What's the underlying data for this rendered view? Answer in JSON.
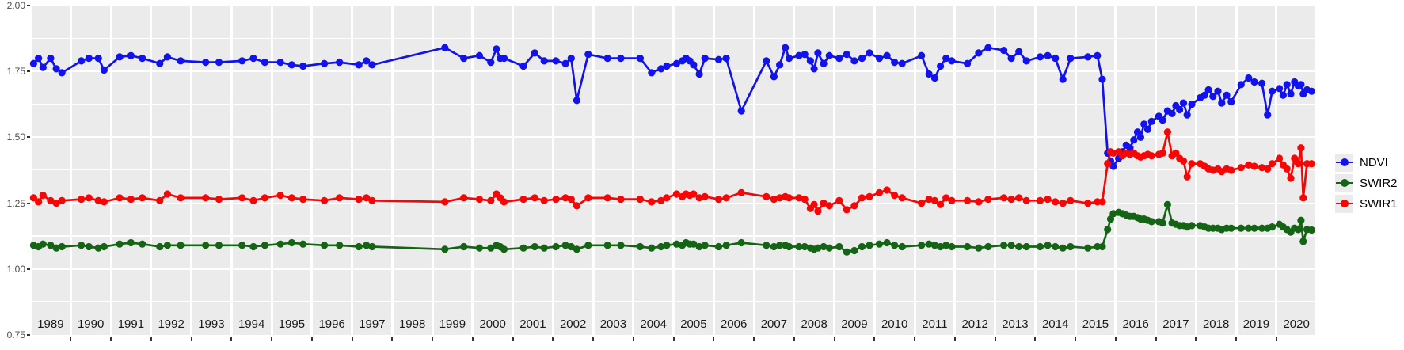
{
  "y_axis": {
    "tick_labels": [
      "2.00",
      "1.75",
      "1.50",
      "1.25",
      "1.00",
      "0.75"
    ],
    "tick_values": [
      2.0,
      1.75,
      1.5,
      1.25,
      1.0,
      0.75
    ]
  },
  "facets": {
    "years": [
      1989,
      1990,
      1991,
      1992,
      1993,
      1994,
      1995,
      1996,
      1997,
      1998,
      1999,
      2000,
      2001,
      2002,
      2003,
      2004,
      2005,
      2006,
      2007,
      2008,
      2009,
      2010,
      2011,
      2012,
      2013,
      2014,
      2015,
      2016,
      2017,
      2018,
      2019,
      2020
    ]
  },
  "legend": {
    "items": [
      {
        "label": "NDVI",
        "series": "NDVI"
      },
      {
        "label": "SWIR2",
        "series": "SWIR2"
      },
      {
        "label": "SWIR1",
        "series": "SWIR1"
      }
    ]
  },
  "colors": {
    "panel_bg": "#EBEBEB",
    "gridline": "#FFFFFF",
    "axis_text": "#4D4D4D",
    "facet_text": "#1A1A1A",
    "tick_mark": "#333333",
    "NDVI": "#1212EC",
    "SWIR2": "#156415",
    "SWIR1": "#F50707"
  },
  "chart_data": {
    "type": "line",
    "title": "",
    "xlabel": "",
    "ylabel": "",
    "x_unit": "decimal year, faceted by calendar year 1989-2020",
    "ylim": [
      0.75,
      2.0
    ],
    "y_ticks": [
      2.0,
      1.75,
      1.5,
      1.25,
      1.0,
      0.75
    ],
    "grid": "white major+minor horizontal lines on gray panels",
    "legend_position": "right-center",
    "series_names": [
      "NDVI",
      "SWIR1",
      "SWIR2"
    ],
    "draw_order": [
      "NDVI",
      "SWIR2",
      "SWIR1"
    ],
    "notable_features": [
      "NDVI stable ~1.74-1.84 from 1989 through mid-2015",
      "NDVI short dips to ~1.64 (2002), ~1.60 (2006), ~1.72 (2011, 2014)",
      "Abrupt disturbance late 2015: NDVI drops to ~1.39-1.44, SWIR1 jumps 1.25->1.44, SWIR2 jumps 1.08->1.21",
      "Gradual NDVI recovery 2016-2020 from ~1.42 to ~1.70; SWIR2 decays to ~1.15; SWIR1 stays ~1.38-1.44",
      "NDVI dip to ~1.585 late 2019; SWIR1 one-date drop to ~1.27 in 2020",
      "No observations during 1998"
    ],
    "columns": [
      "decimal_year",
      "NDVI",
      "SWIR1",
      "SWIR2"
    ],
    "observations": [
      [
        1989.05,
        1.78,
        1.27,
        1.09
      ],
      [
        1989.18,
        1.8,
        1.255,
        1.085
      ],
      [
        1989.3,
        1.765,
        1.28,
        1.095
      ],
      [
        1989.5,
        1.8,
        1.26,
        1.09
      ],
      [
        1989.65,
        1.76,
        1.25,
        1.08
      ],
      [
        1989.8,
        1.745,
        1.26,
        1.085
      ],
      [
        1990.25,
        1.79,
        1.265,
        1.09
      ],
      [
        1990.45,
        1.8,
        1.27,
        1.085
      ],
      [
        1990.7,
        1.8,
        1.26,
        1.08
      ],
      [
        1990.85,
        1.755,
        1.255,
        1.085
      ],
      [
        1991.2,
        1.805,
        1.27,
        1.095
      ],
      [
        1991.5,
        1.81,
        1.265,
        1.1
      ],
      [
        1991.8,
        1.8,
        1.27,
        1.095
      ],
      [
        1992.2,
        1.78,
        1.26,
        1.085
      ],
      [
        1992.4,
        1.805,
        1.285,
        1.09
      ],
      [
        1992.75,
        1.79,
        1.27,
        1.09
      ],
      [
        1993.35,
        1.785,
        1.27,
        1.09
      ],
      [
        1993.7,
        1.785,
        1.265,
        1.09
      ],
      [
        1994.25,
        1.79,
        1.27,
        1.09
      ],
      [
        1994.55,
        1.8,
        1.26,
        1.085
      ],
      [
        1994.85,
        1.785,
        1.27,
        1.09
      ],
      [
        1995.2,
        1.785,
        1.28,
        1.095
      ],
      [
        1995.5,
        1.775,
        1.27,
        1.1
      ],
      [
        1995.8,
        1.77,
        1.265,
        1.095
      ],
      [
        1996.3,
        1.78,
        1.26,
        1.09
      ],
      [
        1996.7,
        1.785,
        1.27,
        1.09
      ],
      [
        1997.15,
        1.775,
        1.265,
        1.085
      ],
      [
        1997.35,
        1.79,
        1.27,
        1.09
      ],
      [
        1997.5,
        1.775,
        1.26,
        1.085
      ],
      [
        1999.3,
        1.84,
        1.255,
        1.075
      ],
      [
        1999.8,
        1.8,
        1.27,
        1.085
      ],
      [
        2000.15,
        1.81,
        1.265,
        1.08
      ],
      [
        2000.45,
        1.785,
        1.26,
        1.08
      ],
      [
        2000.6,
        1.835,
        1.285,
        1.09
      ],
      [
        2000.7,
        1.8,
        1.27,
        1.085
      ],
      [
        2000.8,
        1.8,
        1.255,
        1.075
      ],
      [
        2001.25,
        1.77,
        1.265,
        1.08
      ],
      [
        2001.55,
        1.82,
        1.27,
        1.085
      ],
      [
        2001.8,
        1.79,
        1.26,
        1.08
      ],
      [
        2002.05,
        1.79,
        1.265,
        1.085
      ],
      [
        2002.3,
        1.78,
        1.27,
        1.09
      ],
      [
        2002.45,
        1.8,
        1.265,
        1.085
      ],
      [
        2002.6,
        1.64,
        1.24,
        1.075
      ],
      [
        2002.9,
        1.815,
        1.27,
        1.09
      ],
      [
        2003.35,
        1.8,
        1.27,
        1.09
      ],
      [
        2003.7,
        1.8,
        1.265,
        1.09
      ],
      [
        2004.15,
        1.8,
        1.265,
        1.085
      ],
      [
        2004.45,
        1.745,
        1.255,
        1.08
      ],
      [
        2004.7,
        1.76,
        1.26,
        1.085
      ],
      [
        2004.85,
        1.77,
        1.27,
        1.09
      ],
      [
        2005.05,
        1.78,
        1.285,
        1.095
      ],
      [
        2005.2,
        1.79,
        1.275,
        1.09
      ],
      [
        2005.3,
        1.8,
        1.285,
        1.1
      ],
      [
        2005.4,
        1.79,
        1.28,
        1.095
      ],
      [
        2005.5,
        1.775,
        1.285,
        1.095
      ],
      [
        2005.65,
        1.74,
        1.27,
        1.085
      ],
      [
        2005.8,
        1.8,
        1.275,
        1.09
      ],
      [
        2006.1,
        1.795,
        1.265,
        1.085
      ],
      [
        2006.3,
        1.8,
        1.27,
        1.09
      ],
      [
        2006.7,
        1.6,
        1.29,
        1.1
      ],
      [
        2007.3,
        1.79,
        1.275,
        1.09
      ],
      [
        2007.5,
        1.73,
        1.265,
        1.085
      ],
      [
        2007.65,
        1.775,
        1.27,
        1.09
      ],
      [
        2007.8,
        1.84,
        1.275,
        1.09
      ],
      [
        2007.9,
        1.8,
        1.27,
        1.085
      ],
      [
        2008.1,
        1.81,
        1.27,
        1.085
      ],
      [
        2008.25,
        1.815,
        1.265,
        1.085
      ],
      [
        2008.4,
        1.79,
        1.23,
        1.08
      ],
      [
        2008.5,
        1.76,
        1.245,
        1.075
      ],
      [
        2008.6,
        1.82,
        1.22,
        1.08
      ],
      [
        2008.75,
        1.78,
        1.25,
        1.085
      ],
      [
        2008.9,
        1.81,
        1.24,
        1.08
      ],
      [
        2009.1,
        1.8,
        1.26,
        1.085
      ],
      [
        2009.3,
        1.815,
        1.225,
        1.065
      ],
      [
        2009.5,
        1.79,
        1.24,
        1.07
      ],
      [
        2009.7,
        1.8,
        1.27,
        1.085
      ],
      [
        2009.9,
        1.82,
        1.275,
        1.09
      ],
      [
        2010.1,
        1.8,
        1.29,
        1.095
      ],
      [
        2010.3,
        1.81,
        1.3,
        1.1
      ],
      [
        2010.5,
        1.785,
        1.28,
        1.09
      ],
      [
        2010.7,
        1.78,
        1.27,
        1.085
      ],
      [
        2011.15,
        1.81,
        1.25,
        1.09
      ],
      [
        2011.35,
        1.74,
        1.265,
        1.095
      ],
      [
        2011.5,
        1.725,
        1.26,
        1.09
      ],
      [
        2011.65,
        1.77,
        1.245,
        1.085
      ],
      [
        2011.8,
        1.8,
        1.27,
        1.09
      ],
      [
        2011.95,
        1.79,
        1.26,
        1.085
      ],
      [
        2012.3,
        1.78,
        1.26,
        1.085
      ],
      [
        2012.6,
        1.82,
        1.255,
        1.08
      ],
      [
        2012.85,
        1.84,
        1.265,
        1.085
      ],
      [
        2013.2,
        1.83,
        1.27,
        1.09
      ],
      [
        2013.4,
        1.8,
        1.265,
        1.09
      ],
      [
        2013.6,
        1.825,
        1.27,
        1.085
      ],
      [
        2013.8,
        1.79,
        1.26,
        1.085
      ],
      [
        2014.1,
        1.805,
        1.26,
        1.085
      ],
      [
        2014.3,
        1.81,
        1.265,
        1.09
      ],
      [
        2014.5,
        1.8,
        1.255,
        1.085
      ],
      [
        2014.7,
        1.72,
        1.25,
        1.08
      ],
      [
        2014.9,
        1.8,
        1.26,
        1.085
      ],
      [
        2015.3,
        1.805,
        1.25,
        1.08
      ],
      [
        2015.55,
        1.81,
        1.255,
        1.085
      ],
      [
        2015.68,
        1.72,
        1.255,
        1.085
      ],
      [
        2015.82,
        1.44,
        1.4,
        1.15
      ],
      [
        2015.9,
        1.41,
        1.445,
        1.19
      ],
      [
        2015.97,
        1.39,
        1.44,
        1.21
      ],
      [
        2016.05,
        1.42,
        1.445,
        1.215
      ],
      [
        2016.15,
        1.445,
        1.43,
        1.21
      ],
      [
        2016.25,
        1.47,
        1.44,
        1.205
      ],
      [
        2016.35,
        1.46,
        1.435,
        1.2
      ],
      [
        2016.45,
        1.49,
        1.44,
        1.2
      ],
      [
        2016.55,
        1.52,
        1.43,
        1.195
      ],
      [
        2016.63,
        1.5,
        1.425,
        1.19
      ],
      [
        2016.72,
        1.55,
        1.43,
        1.19
      ],
      [
        2016.82,
        1.53,
        1.435,
        1.185
      ],
      [
        2016.92,
        1.56,
        1.43,
        1.18
      ],
      [
        2017.05,
        1.58,
        1.435,
        1.18
      ],
      [
        2017.15,
        1.565,
        1.44,
        1.175
      ],
      [
        2017.28,
        1.6,
        1.52,
        1.245
      ],
      [
        2017.4,
        1.59,
        1.43,
        1.175
      ],
      [
        2017.5,
        1.62,
        1.44,
        1.17
      ],
      [
        2017.6,
        1.605,
        1.42,
        1.165
      ],
      [
        2017.7,
        1.63,
        1.41,
        1.165
      ],
      [
        2017.8,
        1.585,
        1.35,
        1.16
      ],
      [
        2017.92,
        1.625,
        1.4,
        1.165
      ],
      [
        2018.08,
        1.65,
        1.4,
        1.165
      ],
      [
        2018.2,
        1.66,
        1.39,
        1.16
      ],
      [
        2018.3,
        1.68,
        1.38,
        1.155
      ],
      [
        2018.42,
        1.655,
        1.375,
        1.155
      ],
      [
        2018.55,
        1.675,
        1.38,
        1.155
      ],
      [
        2018.65,
        1.63,
        1.37,
        1.15
      ],
      [
        2018.78,
        1.66,
        1.38,
        1.155
      ],
      [
        2018.9,
        1.635,
        1.375,
        1.155
      ],
      [
        2019.1,
        1.7,
        1.385,
        1.155
      ],
      [
        2019.3,
        1.725,
        1.395,
        1.155
      ],
      [
        2019.45,
        1.71,
        1.39,
        1.155
      ],
      [
        2019.65,
        1.705,
        1.385,
        1.155
      ],
      [
        2019.8,
        1.585,
        1.38,
        1.155
      ],
      [
        2019.92,
        1.675,
        1.4,
        1.16
      ],
      [
        2020.05,
        1.685,
        1.42,
        1.17
      ],
      [
        2020.15,
        1.66,
        1.395,
        1.16
      ],
      [
        2020.25,
        1.7,
        1.38,
        1.15
      ],
      [
        2020.35,
        1.665,
        1.345,
        1.14
      ],
      [
        2020.45,
        1.71,
        1.42,
        1.155
      ],
      [
        2020.55,
        1.695,
        1.4,
        1.15
      ],
      [
        2020.62,
        1.7,
        1.46,
        1.185
      ],
      [
        2020.68,
        1.665,
        1.27,
        1.105
      ],
      [
        2020.78,
        1.68,
        1.4,
        1.15
      ],
      [
        2020.9,
        1.675,
        1.4,
        1.148
      ]
    ]
  }
}
